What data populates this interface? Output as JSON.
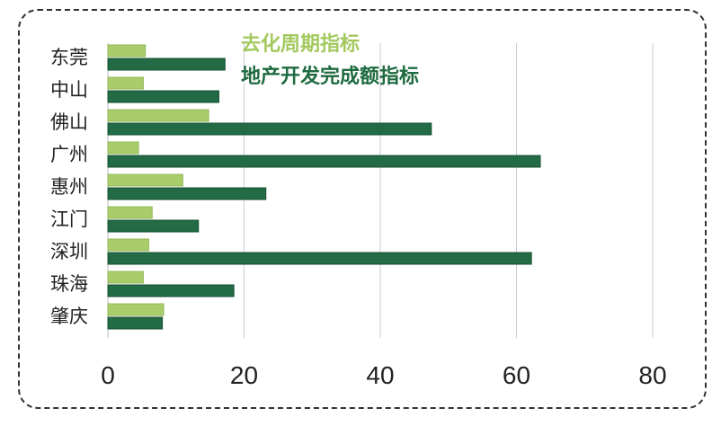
{
  "chart_data": {
    "type": "bar",
    "orientation": "horizontal",
    "categories": [
      "东莞",
      "中山",
      "佛山",
      "广州",
      "惠州",
      "江门",
      "深圳",
      "珠海",
      "肇庆"
    ],
    "series": [
      {
        "name": "去化周期指标",
        "color": "#a9cd6a",
        "values": [
          5.5,
          5.2,
          14.8,
          4.5,
          11,
          6.5,
          6,
          5.2,
          8.2
        ]
      },
      {
        "name": "地产开发完成额指标",
        "color": "#236b45",
        "values": [
          17.2,
          16.3,
          47.5,
          63.5,
          23.2,
          13.3,
          62.2,
          18.5,
          8
        ]
      }
    ],
    "xlim": [
      0,
      80
    ],
    "xticks": [
      0,
      20,
      40,
      60,
      80
    ],
    "grid": true,
    "legend_position": "top-center"
  }
}
